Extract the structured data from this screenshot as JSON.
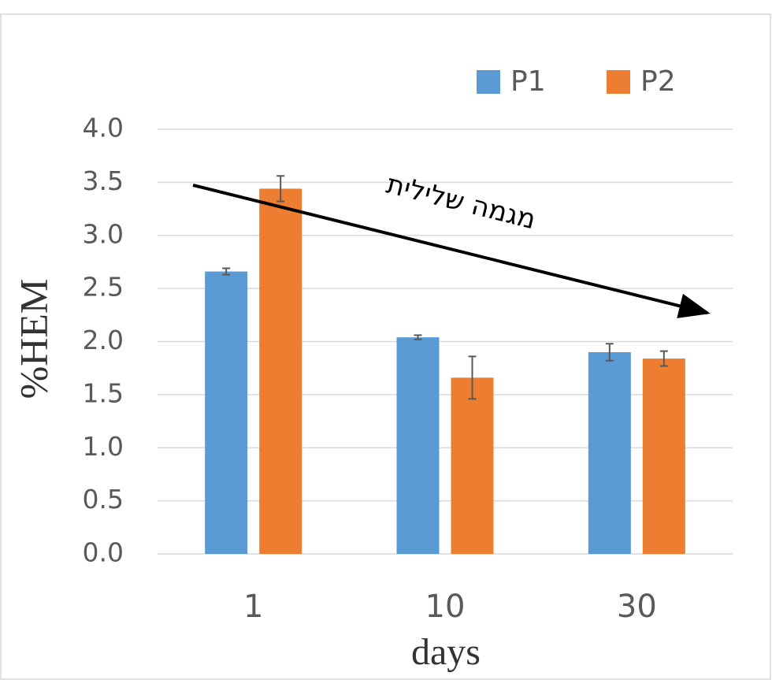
{
  "chart_data": {
    "type": "bar",
    "categories": [
      "1",
      "10",
      "30"
    ],
    "series": [
      {
        "name": "P1",
        "color": "#5b9bd5",
        "values": [
          2.66,
          2.04,
          1.9
        ],
        "errors": [
          0.03,
          0.02,
          0.08
        ]
      },
      {
        "name": "P2",
        "color": "#ed7d31",
        "values": [
          3.44,
          1.66,
          1.84
        ],
        "errors": [
          0.12,
          0.2,
          0.07
        ]
      }
    ],
    "ylim": [
      0,
      4
    ],
    "yticks": [
      {
        "value": 0,
        "label": "0.0"
      },
      0.5,
      {
        "value": 1,
        "label": "1.0"
      },
      1.5,
      {
        "value": 2,
        "label": "2.0"
      },
      2.5,
      {
        "value": 3,
        "label": "3.0"
      },
      3.5,
      {
        "value": 4,
        "label": "4.0"
      }
    ],
    "ylabel": "%HEM",
    "xlabel": "days",
    "annotation": "מגמה שלילית",
    "grid": true,
    "legend": "top-right"
  }
}
